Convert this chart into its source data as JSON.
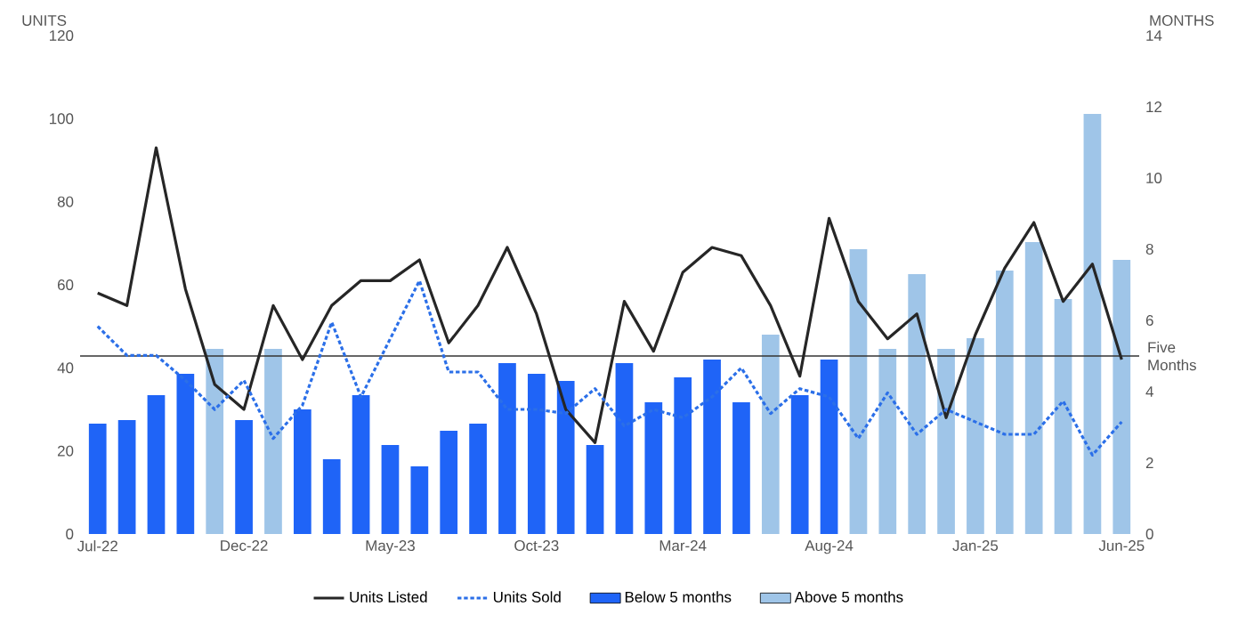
{
  "chart_data": {
    "type": "bar",
    "ylabel": "UNITS",
    "y2label": "MONTHS",
    "categories": [
      "Jul-22",
      null,
      null,
      null,
      null,
      "Dec-22",
      null,
      null,
      null,
      null,
      "May-23",
      null,
      null,
      null,
      null,
      "Oct-23",
      null,
      null,
      null,
      null,
      "Mar-24",
      null,
      null,
      null,
      null,
      "Aug-24",
      null,
      null,
      null,
      null,
      "Jan-25",
      null,
      null,
      null,
      null,
      "Jun-25"
    ],
    "series": [
      {
        "name": "Units Listed",
        "type": "line",
        "axis": "y",
        "line_style": "solid",
        "color": "#262626",
        "values": [
          58,
          55,
          93,
          59,
          36,
          30,
          55,
          42,
          55,
          61,
          61,
          66,
          46,
          55,
          69,
          53,
          30,
          22,
          56,
          44,
          63,
          69,
          67,
          55,
          38,
          76,
          56,
          47,
          53,
          28,
          48,
          64,
          75,
          56,
          65,
          42
        ]
      },
      {
        "name": "Units Sold",
        "type": "line",
        "axis": "y",
        "line_style": "dotted",
        "color": "#2b6fe8",
        "values": [
          50,
          43,
          43,
          37,
          30,
          37,
          23,
          31,
          51,
          33,
          47,
          61,
          39,
          39,
          30,
          30,
          29,
          35,
          26,
          30,
          28,
          33,
          40,
          29,
          35,
          33,
          23,
          34,
          24,
          30,
          27,
          24,
          24,
          32,
          19,
          27
        ]
      },
      {
        "name": "Below 5 months",
        "axis": "y2",
        "color": "#1f64f7",
        "values": [
          3.1,
          3.2,
          3.9,
          4.5,
          null,
          3.2,
          null,
          3.5,
          2.1,
          3.9,
          2.5,
          1.9,
          2.9,
          3.1,
          4.8,
          4.5,
          4.3,
          2.5,
          4.8,
          3.7,
          4.4,
          4.9,
          3.7,
          null,
          3.9,
          4.9,
          null,
          null,
          null,
          null,
          null,
          null,
          null,
          null,
          null,
          null
        ]
      },
      {
        "name": "Above 5 months",
        "axis": "y2",
        "color": "#9fc5e8",
        "values": [
          null,
          null,
          null,
          null,
          5.2,
          null,
          5.2,
          null,
          null,
          null,
          null,
          null,
          null,
          null,
          null,
          null,
          null,
          null,
          null,
          null,
          null,
          null,
          null,
          5.6,
          null,
          null,
          8.0,
          5.2,
          7.3,
          5.2,
          5.5,
          7.4,
          8.2,
          6.6,
          11.8,
          7.7
        ]
      }
    ],
    "ylim": [
      0,
      120
    ],
    "yticks": [
      0,
      20,
      40,
      60,
      80,
      100,
      120
    ],
    "y2lim": [
      0,
      14
    ],
    "y2ticks": [
      0,
      2,
      4,
      6,
      8,
      10,
      12,
      14
    ],
    "ref_lines": [
      {
        "axis": "y2",
        "value": 5,
        "label": "Five Months",
        "color": "#333333"
      }
    ],
    "legend": "bottom"
  }
}
